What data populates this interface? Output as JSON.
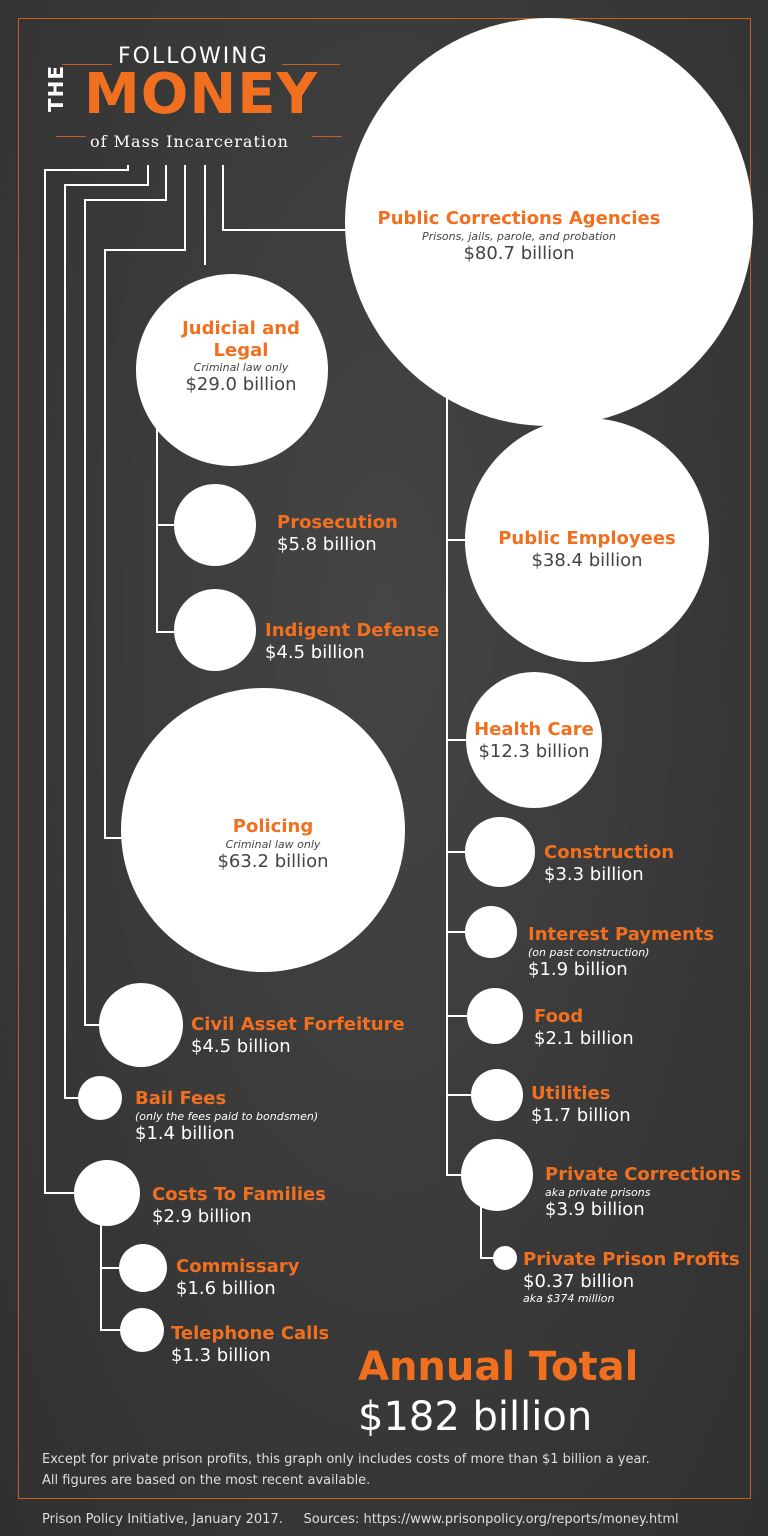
{
  "header": {
    "line1": "FOLLOWING",
    "the": "THE",
    "money": "MONEY",
    "line3": "of Mass Incarceration"
  },
  "nodes": {
    "public_corrections": {
      "title": "Public Corrections Agencies",
      "sub": "Prisons, jails, parole, and probation",
      "value": "$80.7 billion"
    },
    "judicial": {
      "title": "Judicial and Legal",
      "sub": "Criminal law only",
      "value": "$29.0 billion"
    },
    "prosecution": {
      "title": "Prosecution",
      "value": "$5.8 billion"
    },
    "indigent": {
      "title": "Indigent Defense",
      "value": "$4.5 billion"
    },
    "policing": {
      "title": "Policing",
      "sub": "Criminal law only",
      "value": "$63.2 billion"
    },
    "civil_asset": {
      "title": "Civil Asset Forfeiture",
      "value": "$4.5 billion"
    },
    "bail": {
      "title": "Bail Fees",
      "sub": "(only the fees paid to bondsmen)",
      "value": "$1.4 billion"
    },
    "families": {
      "title": "Costs To Families",
      "value": "$2.9 billion"
    },
    "commissary": {
      "title": "Commissary",
      "value": "$1.6 billion"
    },
    "telephone": {
      "title": "Telephone Calls",
      "value": "$1.3 billion"
    },
    "employees": {
      "title": "Public Employees",
      "value": "$38.4 billion"
    },
    "health": {
      "title": "Health Care",
      "value": "$12.3 billion"
    },
    "construction": {
      "title": "Construction",
      "value": "$3.3 billion"
    },
    "interest": {
      "title": "Interest Payments",
      "sub": "(on past construction)",
      "value": "$1.9 billion"
    },
    "food": {
      "title": "Food",
      "value": "$2.1 billion"
    },
    "utilities": {
      "title": "Utilities",
      "value": "$1.7 billion"
    },
    "private_corrections": {
      "title": "Private Corrections",
      "sub": "aka private prisons",
      "value": "$3.9 billion"
    },
    "private_profits": {
      "title": "Private Prison Profits",
      "value": "$0.37 billion",
      "sub": "aka $374 million"
    }
  },
  "total": {
    "label": "Annual Total",
    "value": "$182 billion"
  },
  "note": {
    "line1": "Except for private prison profits, this graph only includes costs of more than $1 billion a year.",
    "line2": "All figures are based on the most recent available."
  },
  "footer": {
    "credit": "Prison Policy Initiative, January 2017.",
    "sources": "Sources: https://www.prisonpolicy.org/reports/money.html"
  },
  "colors": {
    "accent": "#f07020",
    "background": "#3a3a3a",
    "bubble": "#ffffff"
  }
}
